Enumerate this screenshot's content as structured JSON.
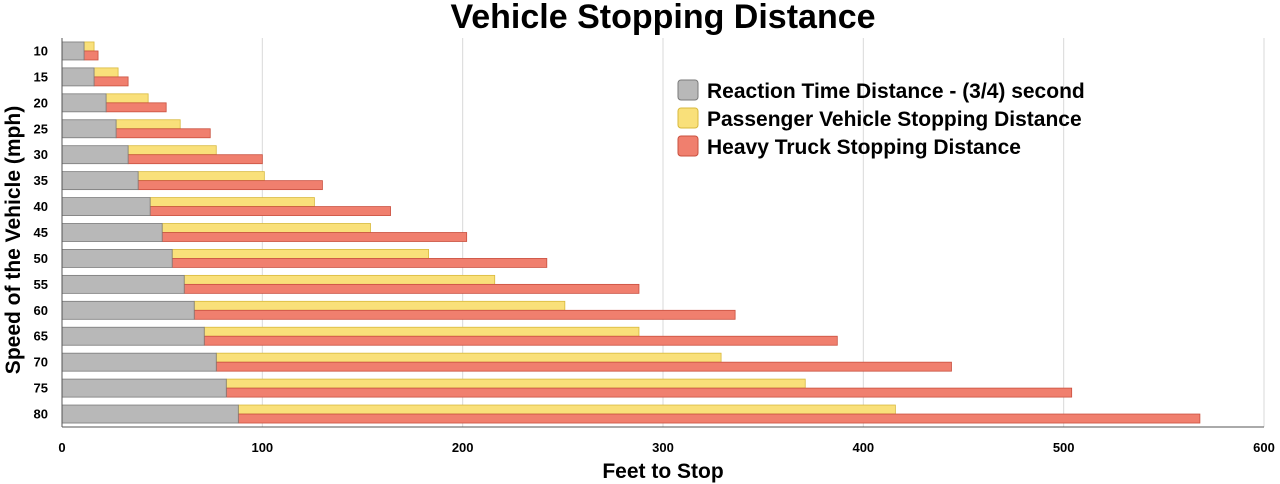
{
  "chart_data": {
    "type": "bar",
    "orientation": "horizontal",
    "title": "Vehicle Stopping Distance",
    "xlabel": "Feet to Stop",
    "ylabel": "Speed of the Vehicle (mph)",
    "xlim": [
      0,
      600
    ],
    "xticks": [
      "0",
      "100",
      "200",
      "300",
      "400",
      "500",
      "600"
    ],
    "categories": [
      "10",
      "15",
      "20",
      "25",
      "30",
      "35",
      "40",
      "45",
      "50",
      "55",
      "60",
      "65",
      "70",
      "75",
      "80"
    ],
    "series": [
      {
        "name": "Reaction Time Distance - (3/4) second",
        "color": "#b8b8b8",
        "values": [
          11,
          16,
          22,
          27,
          33,
          38,
          44,
          50,
          55,
          61,
          66,
          71,
          77,
          82,
          88
        ]
      },
      {
        "name": "Passenger Vehicle Stopping Distance",
        "color": "#f9e07a",
        "values": [
          16,
          28,
          43,
          59,
          77,
          101,
          126,
          154,
          183,
          216,
          251,
          288,
          329,
          371,
          416
        ]
      },
      {
        "name": "Heavy Truck Stopping Distance",
        "color": "#f07f6e",
        "values": [
          18,
          33,
          52,
          74,
          100,
          130,
          164,
          202,
          242,
          288,
          336,
          387,
          444,
          504,
          568
        ]
      }
    ],
    "grid": true,
    "legend_position": "upper-right"
  }
}
